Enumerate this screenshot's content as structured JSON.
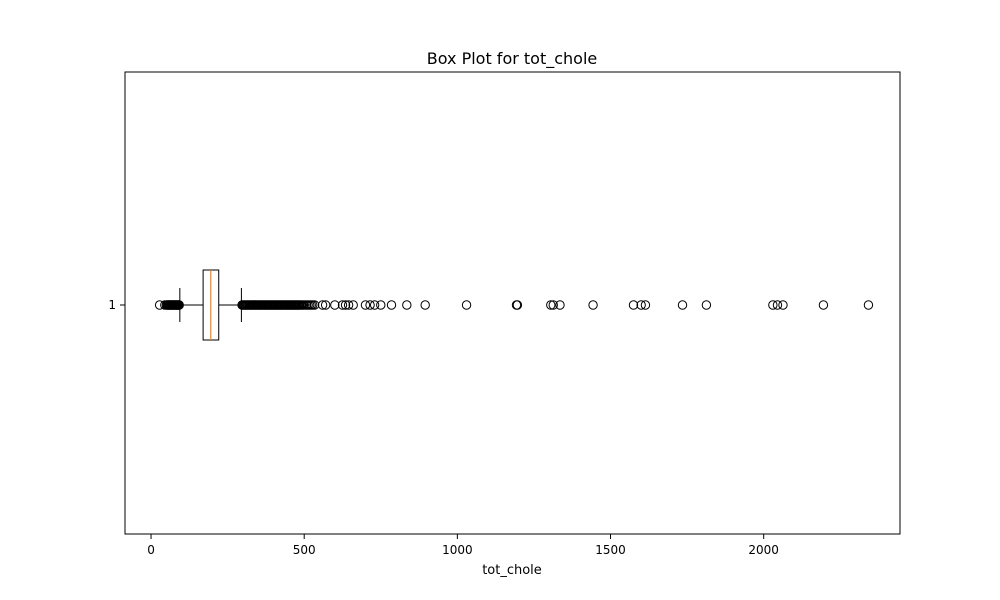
{
  "chart_data": {
    "type": "boxplot",
    "orientation": "horizontal",
    "title": "Box Plot for tot_chole",
    "xlabel": "tot_chole",
    "ylabel": "",
    "xlim": [
      -85,
      2445
    ],
    "xticks": [
      0,
      500,
      1000,
      1500,
      2000
    ],
    "yticks": [
      "1"
    ],
    "grid": false,
    "colors": {
      "box": "#000000",
      "median": "#ff7f0e",
      "outlier_edge": "#000000"
    },
    "series": [
      {
        "category": "1",
        "whisker_low": 94,
        "q1": 170,
        "median": 195,
        "q3": 221,
        "whisker_high": 295,
        "outliers": [
          28,
          45,
          50,
          53,
          55,
          57,
          59,
          61,
          63,
          65,
          67,
          69,
          71,
          73,
          75,
          77,
          79,
          81,
          83,
          85,
          87,
          89,
          91,
          92,
          297,
          300,
          303,
          306,
          309,
          312,
          315,
          318,
          321,
          324,
          327,
          330,
          333,
          336,
          339,
          342,
          345,
          348,
          351,
          354,
          357,
          360,
          363,
          366,
          369,
          372,
          375,
          378,
          381,
          384,
          387,
          390,
          393,
          396,
          399,
          402,
          405,
          408,
          411,
          414,
          417,
          420,
          423,
          426,
          429,
          432,
          435,
          438,
          441,
          444,
          447,
          450,
          453,
          456,
          459,
          462,
          465,
          468,
          471,
          474,
          477,
          480,
          483,
          486,
          490,
          494,
          498,
          503,
          508,
          513,
          518,
          523,
          528,
          534,
          560,
          570,
          600,
          625,
          635,
          645,
          660,
          700,
          715,
          730,
          750,
          785,
          835,
          895,
          1030,
          1193,
          1196,
          1305,
          1313,
          1335,
          1443,
          1575,
          1600,
          1614,
          1735,
          1813,
          2030,
          2045,
          2063,
          2195,
          2342
        ]
      }
    ]
  }
}
